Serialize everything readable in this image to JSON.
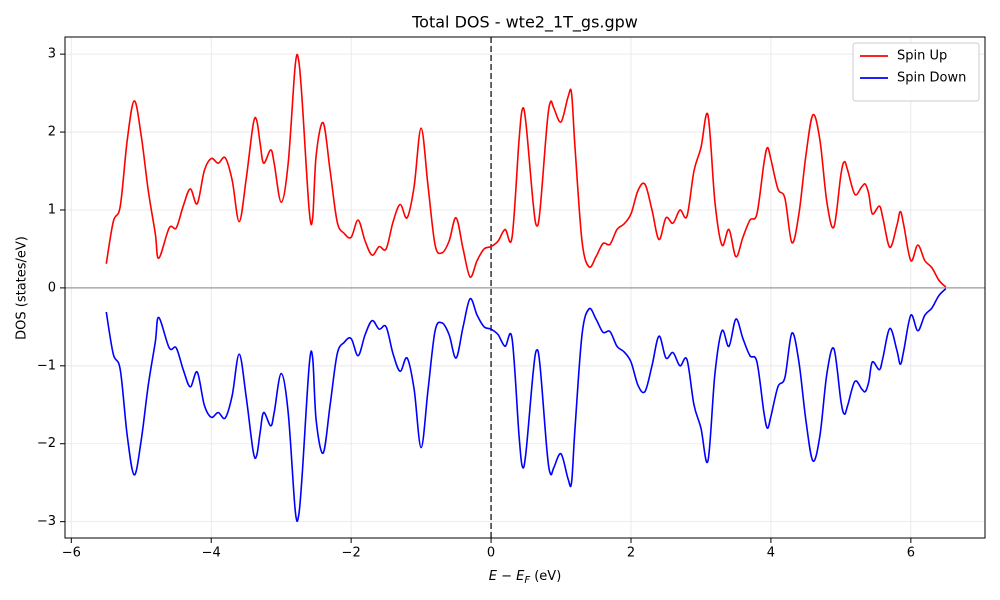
{
  "chart_data": {
    "type": "line",
    "title": "Total DOS - wte2_1T_gs.gpw",
    "xlabel": [
      "E − E",
      "F",
      " (eV)"
    ],
    "ylabel": "DOS (states/eV)",
    "x": [
      -5.5,
      -5.4,
      -5.3,
      -5.2,
      -5.1,
      -5.0,
      -4.9,
      -4.8,
      -4.75,
      -4.6,
      -4.5,
      -4.4,
      -4.3,
      -4.2,
      -4.1,
      -4.0,
      -3.9,
      -3.8,
      -3.7,
      -3.6,
      -3.5,
      -3.4,
      -3.35,
      -3.3,
      -3.25,
      -3.15,
      -3.1,
      -3.0,
      -2.9,
      -2.8,
      -2.75,
      -2.7,
      -2.6,
      -2.55,
      -2.5,
      -2.4,
      -2.3,
      -2.2,
      -2.1,
      -2.0,
      -1.9,
      -1.8,
      -1.7,
      -1.6,
      -1.5,
      -1.4,
      -1.3,
      -1.2,
      -1.1,
      -1.0,
      -0.9,
      -0.8,
      -0.7,
      -0.6,
      -0.5,
      -0.4,
      -0.3,
      -0.2,
      -0.1,
      0.0,
      0.1,
      0.2,
      0.3,
      0.4,
      0.45,
      0.5,
      0.6,
      0.65,
      0.7,
      0.8,
      0.85,
      0.9,
      1.0,
      1.1,
      1.15,
      1.2,
      1.3,
      1.4,
      1.5,
      1.6,
      1.7,
      1.8,
      1.9,
      2.0,
      2.1,
      2.2,
      2.3,
      2.4,
      2.5,
      2.6,
      2.7,
      2.8,
      2.9,
      3.0,
      3.1,
      3.2,
      3.3,
      3.4,
      3.5,
      3.6,
      3.7,
      3.8,
      3.9,
      3.95,
      4.0,
      4.1,
      4.2,
      4.3,
      4.4,
      4.5,
      4.6,
      4.7,
      4.8,
      4.9,
      5.0,
      5.05,
      5.1,
      5.2,
      5.3,
      5.35,
      5.4,
      5.45,
      5.55,
      5.6,
      5.7,
      5.8,
      5.85,
      5.9,
      6.0,
      6.1,
      6.2,
      6.3,
      6.4,
      6.5
    ],
    "series": [
      {
        "name": "Spin Up",
        "color": "#ff0000",
        "values": [
          0.31,
          0.85,
          1.05,
          1.9,
          2.4,
          1.95,
          1.25,
          0.7,
          0.38,
          0.77,
          0.77,
          1.05,
          1.27,
          1.08,
          1.5,
          1.66,
          1.6,
          1.67,
          1.38,
          0.85,
          1.4,
          2.1,
          2.15,
          1.85,
          1.6,
          1.77,
          1.6,
          1.1,
          1.6,
          2.85,
          2.92,
          2.4,
          1.0,
          0.9,
          1.7,
          2.12,
          1.5,
          0.85,
          0.7,
          0.65,
          0.87,
          0.6,
          0.42,
          0.53,
          0.5,
          0.85,
          1.07,
          0.9,
          1.3,
          2.05,
          1.3,
          0.55,
          0.45,
          0.6,
          0.9,
          0.5,
          0.14,
          0.35,
          0.5,
          0.53,
          0.6,
          0.75,
          0.65,
          1.9,
          2.3,
          2.1,
          1.1,
          0.8,
          1.0,
          2.1,
          2.39,
          2.3,
          2.13,
          2.45,
          2.5,
          1.8,
          0.6,
          0.27,
          0.4,
          0.57,
          0.56,
          0.75,
          0.82,
          0.95,
          1.25,
          1.33,
          1.0,
          0.62,
          0.9,
          0.83,
          1.0,
          0.92,
          1.5,
          1.8,
          2.22,
          1.1,
          0.55,
          0.75,
          0.4,
          0.65,
          0.87,
          0.95,
          1.6,
          1.8,
          1.65,
          1.27,
          1.15,
          0.58,
          0.95,
          1.7,
          2.22,
          1.9,
          1.1,
          0.78,
          1.45,
          1.62,
          1.5,
          1.2,
          1.3,
          1.33,
          1.2,
          0.95,
          1.05,
          0.9,
          0.52,
          0.8,
          0.98,
          0.8,
          0.35,
          0.55,
          0.35,
          0.26,
          0.1,
          0.01
        ]
      },
      {
        "name": "Spin Down",
        "color": "#0000ff",
        "values": [
          -0.31,
          -0.85,
          -1.05,
          -1.9,
          -2.4,
          -1.95,
          -1.25,
          -0.7,
          -0.38,
          -0.77,
          -0.77,
          -1.05,
          -1.27,
          -1.08,
          -1.5,
          -1.66,
          -1.6,
          -1.67,
          -1.38,
          -0.85,
          -1.4,
          -2.1,
          -2.15,
          -1.85,
          -1.6,
          -1.77,
          -1.6,
          -1.1,
          -1.6,
          -2.85,
          -2.92,
          -2.4,
          -1.0,
          -0.9,
          -1.7,
          -2.12,
          -1.5,
          -0.85,
          -0.7,
          -0.65,
          -0.87,
          -0.6,
          -0.42,
          -0.53,
          -0.5,
          -0.85,
          -1.07,
          -0.9,
          -1.3,
          -2.05,
          -1.3,
          -0.55,
          -0.45,
          -0.6,
          -0.9,
          -0.5,
          -0.14,
          -0.35,
          -0.5,
          -0.53,
          -0.6,
          -0.75,
          -0.65,
          -1.9,
          -2.3,
          -2.1,
          -1.1,
          -0.8,
          -1.0,
          -2.1,
          -2.39,
          -2.3,
          -2.13,
          -2.45,
          -2.5,
          -1.8,
          -0.6,
          -0.27,
          -0.4,
          -0.57,
          -0.56,
          -0.75,
          -0.82,
          -0.95,
          -1.25,
          -1.33,
          -1.0,
          -0.62,
          -0.9,
          -0.83,
          -1.0,
          -0.92,
          -1.5,
          -1.8,
          -2.22,
          -1.1,
          -0.55,
          -0.75,
          -0.4,
          -0.65,
          -0.87,
          -0.95,
          -1.6,
          -1.8,
          -1.65,
          -1.27,
          -1.15,
          -0.58,
          -0.95,
          -1.7,
          -2.22,
          -1.9,
          -1.1,
          -0.78,
          -1.45,
          -1.62,
          -1.5,
          -1.2,
          -1.3,
          -1.33,
          -1.2,
          -0.95,
          -1.05,
          -0.9,
          -0.52,
          -0.8,
          -0.98,
          -0.8,
          -0.35,
          -0.55,
          -0.35,
          -0.26,
          -0.1,
          -0.01
        ]
      }
    ],
    "xlim": [
      -6.09,
      7.06
    ],
    "ylim": [
      -3.21,
      3.22
    ],
    "xticks": [
      {
        "value": -6,
        "label": "−6"
      },
      {
        "value": -4,
        "label": "−4"
      },
      {
        "value": -2,
        "label": "−2"
      },
      0,
      2,
      4,
      6
    ],
    "yticks": [
      {
        "value": -3,
        "label": "−3"
      },
      {
        "value": -2,
        "label": "−2"
      },
      {
        "value": -1,
        "label": "−1"
      },
      0,
      1,
      2,
      3
    ],
    "vline": 0,
    "hline": 0,
    "grid": true,
    "legend": "upper-right"
  }
}
